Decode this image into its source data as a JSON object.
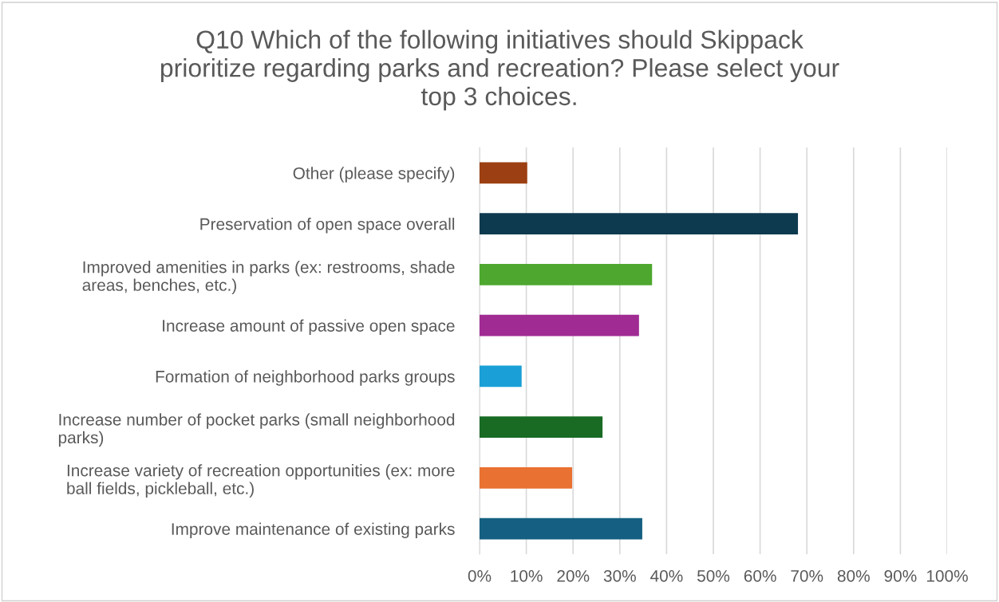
{
  "chart_data": {
    "type": "bar",
    "orientation": "horizontal",
    "title": "Q10 Which of the following initiatives should Skippack\nprioritize regarding parks and recreation? Please select your\ntop 3 choices.",
    "categories": [
      "Other (please specify)",
      "Preservation of open space overall",
      "Improved amenities in parks (ex: restrooms, shade\nareas, benches, etc.)",
      "Increase amount of passive open space",
      "Formation of neighborhood parks groups",
      "Increase number of pocket parks (small neighborhood\nparks)",
      "Increase variety of recreation opportunities (ex: more\nball fields, pickleball, etc.)",
      "Improve maintenance of existing parks"
    ],
    "values": [
      10.2,
      68.1,
      36.9,
      34.1,
      9.0,
      26.3,
      19.8,
      34.8
    ],
    "colors": [
      "#9c3f12",
      "#0e3a4f",
      "#4ea72e",
      "#a02b93",
      "#1a9fd6",
      "#196b24",
      "#e97132",
      "#156082"
    ],
    "xlim": [
      0,
      100
    ],
    "xticks": [
      {
        "value": 0,
        "label": "0%"
      },
      {
        "value": 10,
        "label": "10%"
      },
      {
        "value": 20,
        "label": "20%"
      },
      {
        "value": 30,
        "label": "30%"
      },
      {
        "value": 40,
        "label": "40%"
      },
      {
        "value": 50,
        "label": "50%"
      },
      {
        "value": 60,
        "label": "60%"
      },
      {
        "value": 70,
        "label": "70%"
      },
      {
        "value": 80,
        "label": "80%"
      },
      {
        "value": 90,
        "label": "90%"
      },
      {
        "value": 100,
        "label": "100%"
      }
    ],
    "grid": "x"
  }
}
